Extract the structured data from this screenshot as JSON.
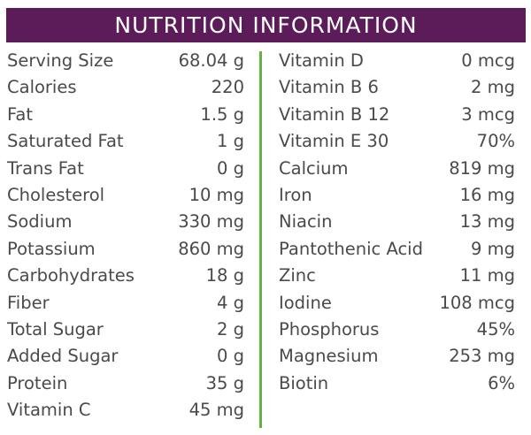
{
  "header": {
    "title": "NUTRITION INFORMATION",
    "bg_color": "#5c1c59",
    "divider_color": "#66b046"
  },
  "left_column": [
    {
      "label": "Serving Size",
      "value": "68.04 g"
    },
    {
      "label": "Calories",
      "value": "220"
    },
    {
      "label": "Fat",
      "value": "1.5 g"
    },
    {
      "label": "Saturated Fat",
      "value": "1 g"
    },
    {
      "label": "Trans Fat",
      "value": "0 g"
    },
    {
      "label": "Cholesterol",
      "value": "10 mg"
    },
    {
      "label": "Sodium",
      "value": "330 mg"
    },
    {
      "label": "Potassium",
      "value": "860 mg"
    },
    {
      "label": "Carbohydrates",
      "value": "18 g"
    },
    {
      "label": "Fiber",
      "value": "4 g"
    },
    {
      "label": "Total Sugar",
      "value": "2 g"
    },
    {
      "label": "Added Sugar",
      "value": "0 g"
    },
    {
      "label": "Protein",
      "value": "35 g"
    },
    {
      "label": "Vitamin C",
      "value": "45 mg"
    }
  ],
  "right_column": [
    {
      "label": "Vitamin D",
      "value": "0 mcg"
    },
    {
      "label": "Vitamin B 6",
      "value": "2 mg"
    },
    {
      "label": "Vitamin B 12",
      "value": "3 mcg"
    },
    {
      "label": "Vitamin E 30",
      "value": "70%"
    },
    {
      "label": "Calcium",
      "value": "819 mg"
    },
    {
      "label": "Iron",
      "value": "16 mg"
    },
    {
      "label": "Niacin",
      "value": "13 mg"
    },
    {
      "label": "Pantothenic Acid",
      "value": "9 mg"
    },
    {
      "label": "Zinc",
      "value": "11 mg"
    },
    {
      "label": "Iodine",
      "value": "108 mcg"
    },
    {
      "label": "Phosphorus",
      "value": "45%"
    },
    {
      "label": "Magnesium",
      "value": "253 mg"
    },
    {
      "label": "Biotin",
      "value": "6%"
    }
  ]
}
